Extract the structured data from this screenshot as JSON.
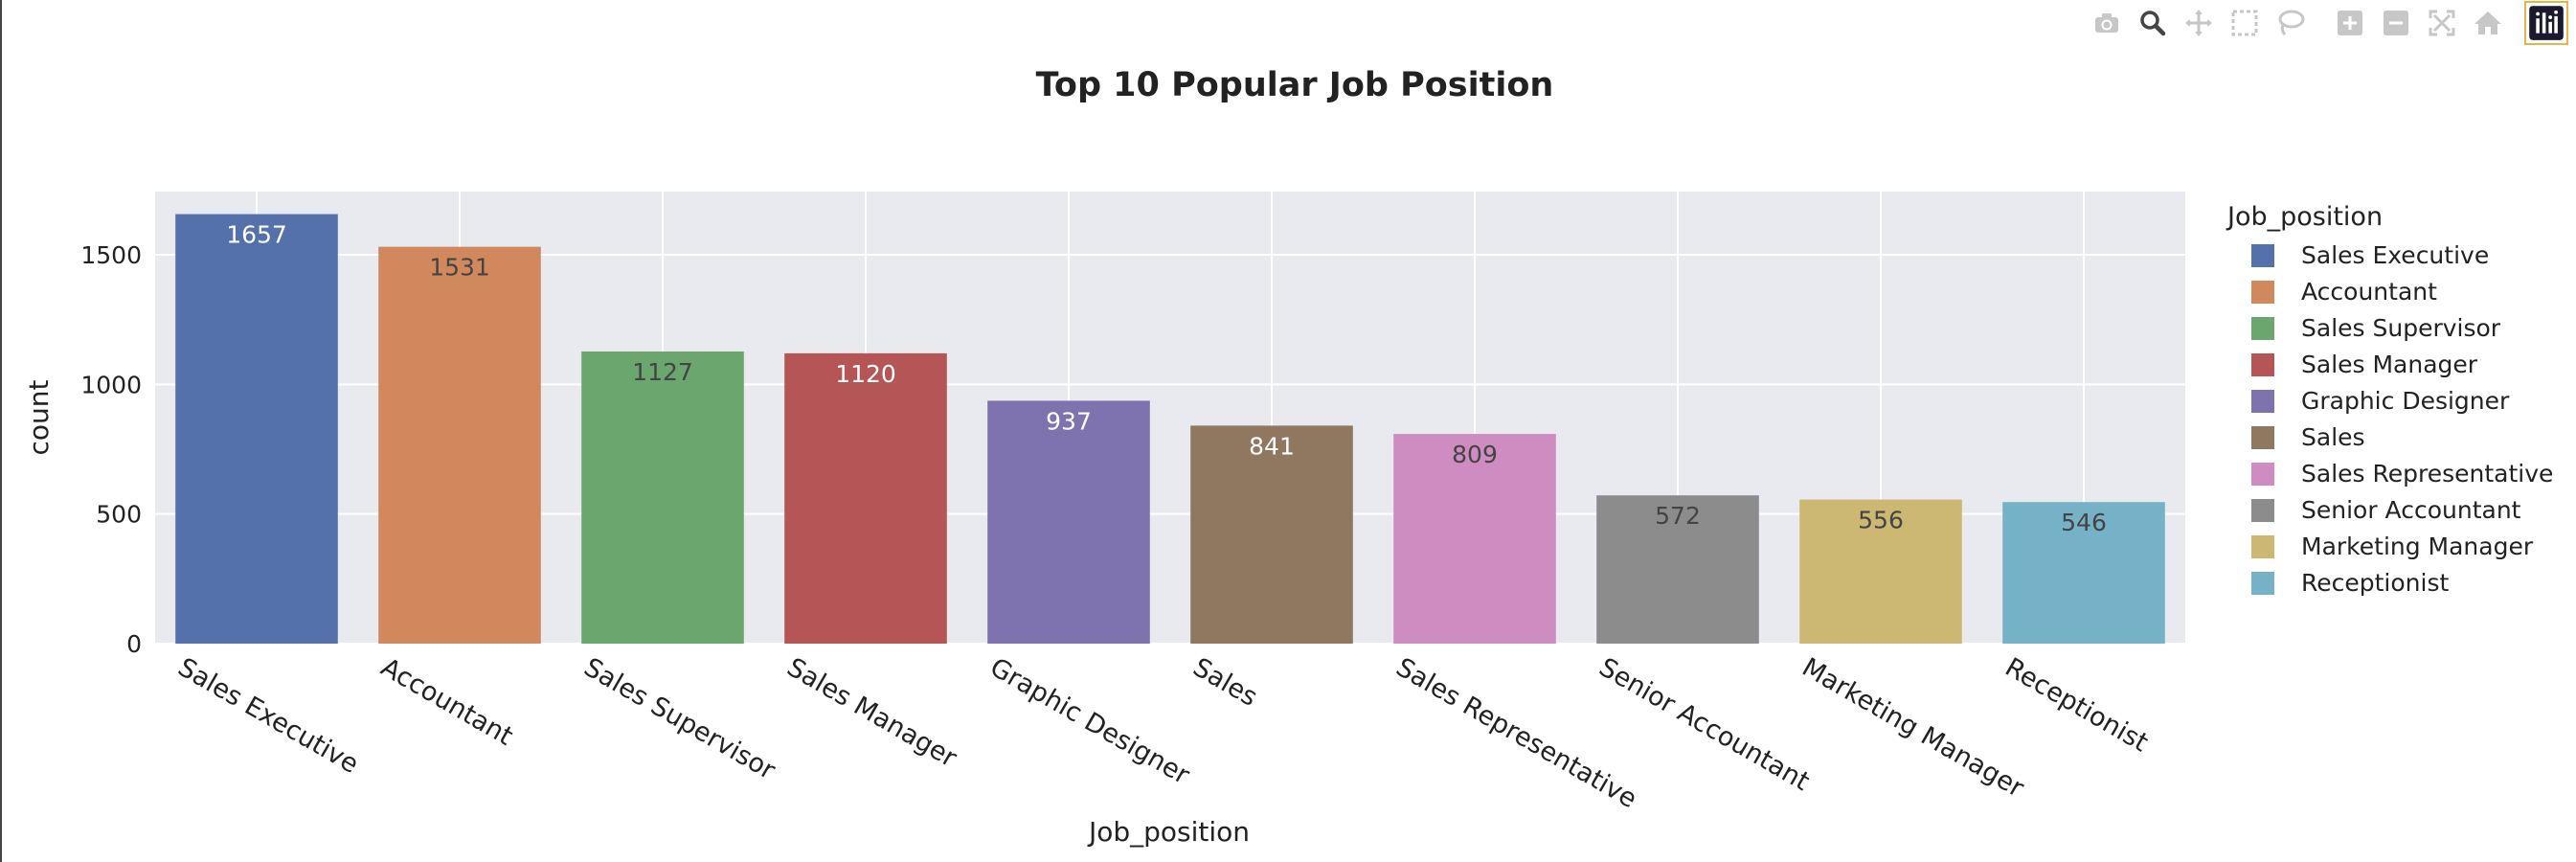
{
  "chart_data": {
    "type": "bar",
    "title": "Top 10 Popular Job Position",
    "xlabel": "Job_position",
    "ylabel": "count",
    "categories": [
      "Sales Executive",
      "Accountant",
      "Sales Supervisor",
      "Sales Manager",
      "Graphic Designer",
      "Sales",
      "Sales Representative",
      "Senior Accountant",
      "Marketing Manager",
      "Receptionist"
    ],
    "values": [
      1657,
      1531,
      1127,
      1120,
      937,
      841,
      809,
      572,
      556,
      546
    ],
    "colors": [
      "#5471ab",
      "#d1885c",
      "#6aa66e",
      "#b55555",
      "#7f73af",
      "#8f7760",
      "#cf8cc0",
      "#8c8c8c",
      "#ccb873",
      "#75b1c7"
    ],
    "label_colors": [
      "#ffffff",
      "#444444",
      "#444444",
      "#ffffff",
      "#ffffff",
      "#ffffff",
      "#444444",
      "#444444",
      "#444444",
      "#444444"
    ],
    "yticks": [
      "0",
      "500",
      "1000",
      "1500"
    ],
    "ylim": [
      0,
      1744
    ],
    "grid": true,
    "legend": {
      "title": "Job_position",
      "placement": "right"
    },
    "plot_background": "#e9e9f0"
  },
  "modebar": {
    "icons": [
      "camera-icon",
      "zoom-icon",
      "pan-icon",
      "box-select-icon",
      "lasso-icon",
      "zoom-in-icon",
      "zoom-out-icon",
      "autoscale-icon",
      "reset-axes-icon",
      "plotly-logo-icon"
    ]
  }
}
